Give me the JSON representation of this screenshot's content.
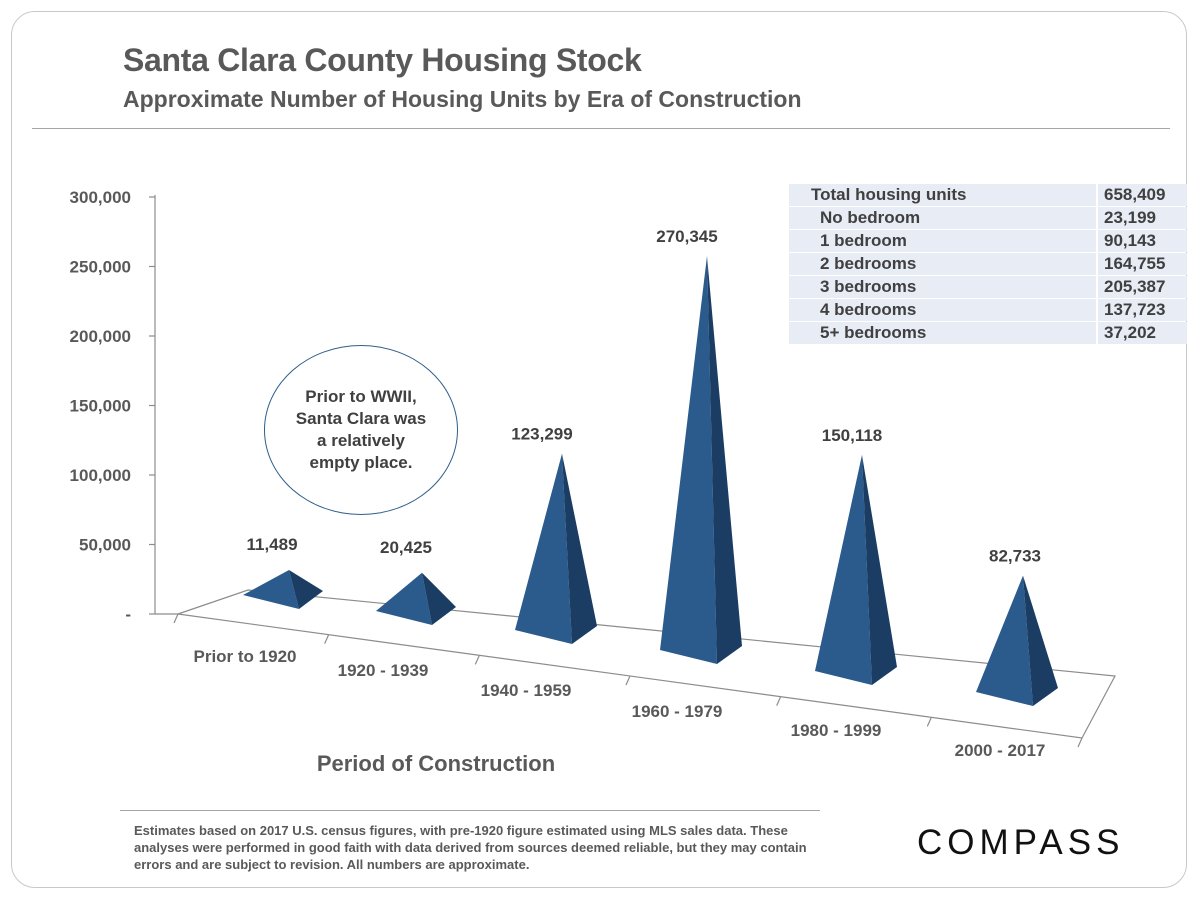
{
  "title": "Santa Clara County Housing Stock",
  "subtitle": "Approximate Number of Housing Units by Era of Construction",
  "callout": "Prior to WWII,\nSanta Clara was\na relatively\nempty place.",
  "stats_table": {
    "rows": [
      {
        "label": "Total housing units",
        "value": "658,409"
      },
      {
        "label": "No bedroom",
        "value": "23,199"
      },
      {
        "label": "1 bedroom",
        "value": "90,143"
      },
      {
        "label": "2 bedrooms",
        "value": "164,755"
      },
      {
        "label": "3 bedrooms",
        "value": "205,387"
      },
      {
        "label": "4 bedrooms",
        "value": "137,723"
      },
      {
        "label": "5+ bedrooms",
        "value": "37,202"
      }
    ]
  },
  "footnote": "Estimates based on 2017 U.S. census figures, with pre-1920 figure estimated using MLS sales data. These analyses were performed in good faith with data derived from sources deemed reliable, but they may contain errors and are subject to revision. All numbers are approximate.",
  "logo": "COMPASS",
  "colors": {
    "pyramid_front": "#2b5a8c",
    "pyramid_side": "#1b3d63",
    "accent_line": "#2f5f8a"
  },
  "chart_data": {
    "type": "bar",
    "shape": "3d-pyramid",
    "categories": [
      "Prior to 1920",
      "1920 - 1939",
      "1940 - 1959",
      "1960 - 1979",
      "1980 - 1999",
      "2000 - 2017"
    ],
    "values": [
      11489,
      20425,
      123299,
      270345,
      150118,
      82733
    ],
    "data_labels": [
      "11,489",
      "20,425",
      "123,299",
      "270,345",
      "150,118",
      "82,733"
    ],
    "xlabel": "Period of Construction",
    "ylabel": "",
    "ylim": [
      0,
      300000
    ],
    "yticks": [
      0,
      50000,
      100000,
      150000,
      200000,
      250000,
      300000
    ],
    "ytick_labels": [
      "-",
      "50,000",
      "100,000",
      "150,000",
      "200,000",
      "250,000",
      "300,000"
    ],
    "grid": false,
    "legend": "none"
  }
}
